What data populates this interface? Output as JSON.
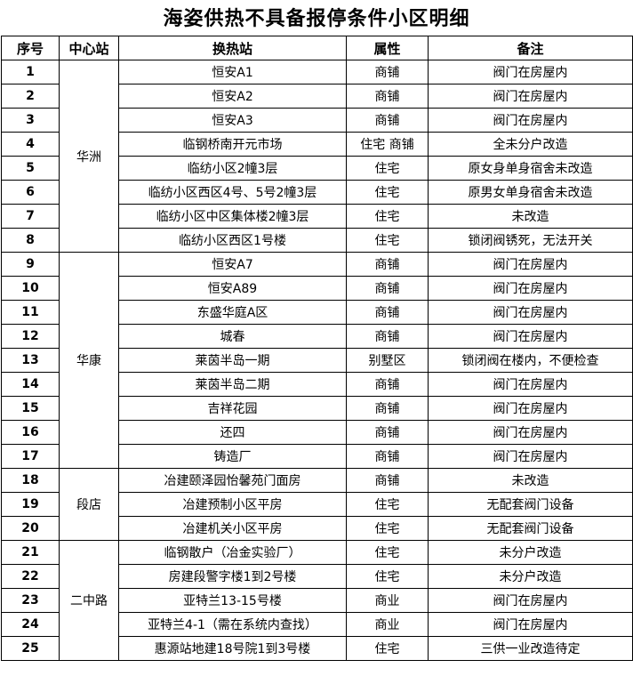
{
  "title": "海姿供热不具备报停条件小区明细",
  "headers": [
    "序号",
    "中心站",
    "换热站",
    "属性",
    "备注"
  ],
  "groups": [
    {
      "center": "华洲",
      "rows": [
        {
          "no": "1",
          "station": "恒安A1",
          "type": "商铺",
          "note": "阀门在房屋内"
        },
        {
          "no": "2",
          "station": "恒安A2",
          "type": "商铺",
          "note": "阀门在房屋内"
        },
        {
          "no": "3",
          "station": "恒安A3",
          "type": "商铺",
          "note": "阀门在房屋内"
        },
        {
          "no": "4",
          "station": "临钢桥南开元市场",
          "type": "住宅 商铺",
          "note": "全未分户改造"
        },
        {
          "no": "5",
          "station": "临纺小区2幢3层",
          "type": "住宅",
          "note": "原女身单身宿舍未改造"
        },
        {
          "no": "6",
          "station": "临纺小区西区4号、5号2幢3层",
          "type": "住宅",
          "note": "原男女单身宿舍未改造"
        },
        {
          "no": "7",
          "station": "临纺小区中区集体楼2幢3层",
          "type": "住宅",
          "note": "未改造"
        },
        {
          "no": "8",
          "station": "临纺小区西区1号楼",
          "type": "住宅",
          "note": "锁闭阀锈死，无法开关"
        }
      ]
    },
    {
      "center": "华康",
      "rows": [
        {
          "no": "9",
          "station": "恒安A7",
          "type": "商铺",
          "note": "阀门在房屋内"
        },
        {
          "no": "10",
          "station": "恒安A89",
          "type": "商铺",
          "note": "阀门在房屋内"
        },
        {
          "no": "11",
          "station": "东盛华庭A区",
          "type": "商铺",
          "note": "阀门在房屋内"
        },
        {
          "no": "12",
          "station": "城春",
          "type": "商铺",
          "note": "阀门在房屋内"
        },
        {
          "no": "13",
          "station": "莱茵半岛一期",
          "type": "别墅区",
          "note": "锁闭阀在楼内，不便检查"
        },
        {
          "no": "14",
          "station": "莱茵半岛二期",
          "type": "商铺",
          "note": "阀门在房屋内"
        },
        {
          "no": "15",
          "station": "吉祥花园",
          "type": "商铺",
          "note": "阀门在房屋内"
        },
        {
          "no": "16",
          "station": "还四",
          "type": "商铺",
          "note": "阀门在房屋内"
        },
        {
          "no": "17",
          "station": "铸造厂",
          "type": "商铺",
          "note": "阀门在房屋内"
        }
      ]
    },
    {
      "center": "段店",
      "rows": [
        {
          "no": "18",
          "station": "冶建颐泽园怡馨苑门面房",
          "type": "商铺",
          "note": "未改造"
        },
        {
          "no": "19",
          "station": "冶建预制小区平房",
          "type": "住宅",
          "note": "无配套阀门设备"
        },
        {
          "no": "20",
          "station": "冶建机关小区平房",
          "type": "住宅",
          "note": "无配套阀门设备"
        }
      ]
    },
    {
      "center": "二中路",
      "rows": [
        {
          "no": "21",
          "station": "临钢散户（冶金实验厂）",
          "type": "住宅",
          "note": "未分户改造"
        },
        {
          "no": "22",
          "station": "房建段警字楼1到2号楼",
          "type": "住宅",
          "note": "未分户改造"
        },
        {
          "no": "23",
          "station": "亚特兰13-15号楼",
          "type": "商业",
          "note": "阀门在房屋内"
        },
        {
          "no": "24",
          "station": "亚特兰4-1（需在系统内查找）",
          "type": "商业",
          "note": "阀门在房屋内"
        },
        {
          "no": "25",
          "station": "惠源站地建18号院1到3号楼",
          "type": "住宅",
          "note": "三供一业改造待定"
        }
      ]
    }
  ]
}
